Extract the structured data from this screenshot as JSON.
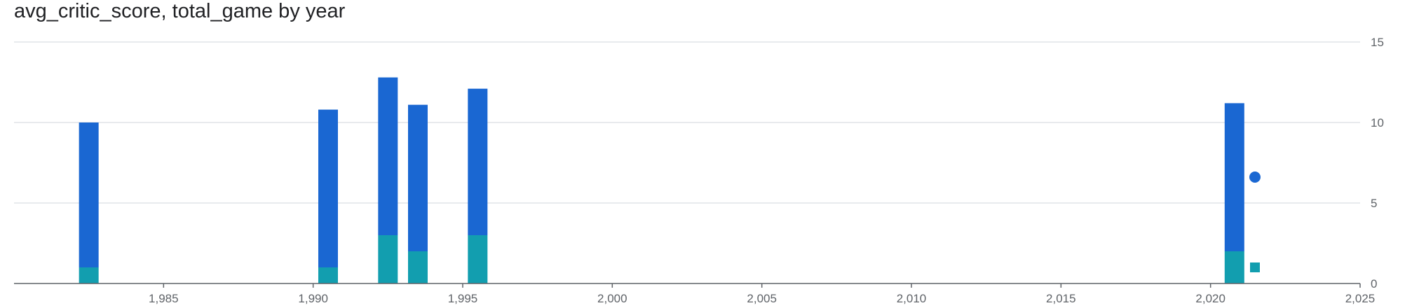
{
  "chart_data": {
    "type": "bar",
    "stacked": true,
    "title": "avg_critic_score, total_game by year",
    "xlim": [
      1980,
      2025
    ],
    "ylim": [
      0,
      15
    ],
    "x_ticks": [
      "1,985",
      "1,990",
      "1,995",
      "2,000",
      "2,005",
      "2,010",
      "2,015",
      "2,020",
      "2,025"
    ],
    "y_ticks": [
      "0",
      "5",
      "10",
      "15"
    ],
    "grid": true,
    "legend": "right",
    "x": [
      1982.5,
      1990.5,
      1992.5,
      1993.5,
      1995.5,
      2020.8
    ],
    "series": [
      {
        "key": "total_game",
        "color": "#129eaf",
        "values": [
          1,
          1,
          3,
          2,
          3,
          2
        ]
      },
      {
        "key": "avg_critic_score",
        "color": "#1a67d2",
        "values": [
          9,
          9.8,
          9.8,
          9.1,
          9.1,
          9.2
        ]
      }
    ],
    "legend_items": [
      {
        "marker": "circle",
        "color": "#1a67d2"
      },
      {
        "marker": "square",
        "color": "#129eaf"
      }
    ]
  }
}
